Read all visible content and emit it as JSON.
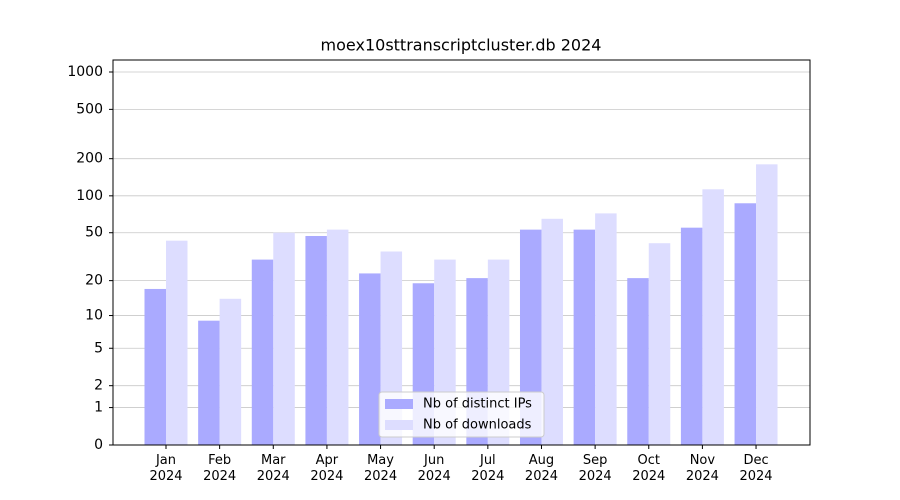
{
  "chart_data": {
    "type": "bar",
    "title": "moex10sttranscriptcluster.db 2024",
    "categories": [
      "Jan 2024",
      "Feb 2024",
      "Mar 2024",
      "Apr 2024",
      "May 2024",
      "Jun 2024",
      "Jul 2024",
      "Aug 2024",
      "Sep 2024",
      "Oct 2024",
      "Nov 2024",
      "Dec 2024"
    ],
    "series": [
      {
        "name": "Nb of distinct IPs",
        "color": "#aaaaff",
        "values": [
          17,
          9,
          30,
          47,
          23,
          19,
          21,
          53,
          53,
          21,
          55,
          87
        ]
      },
      {
        "name": "Nb of downloads",
        "color": "#ddddff",
        "values": [
          43,
          14,
          50,
          53,
          35,
          30,
          30,
          65,
          72,
          41,
          113,
          180
        ]
      }
    ],
    "yscale": "log1p",
    "ylim": [
      0,
      1000
    ],
    "yticks": [
      0,
      1,
      2,
      5,
      10,
      20,
      50,
      100,
      200,
      500,
      1000
    ],
    "grid": true,
    "legend": "lower center"
  }
}
